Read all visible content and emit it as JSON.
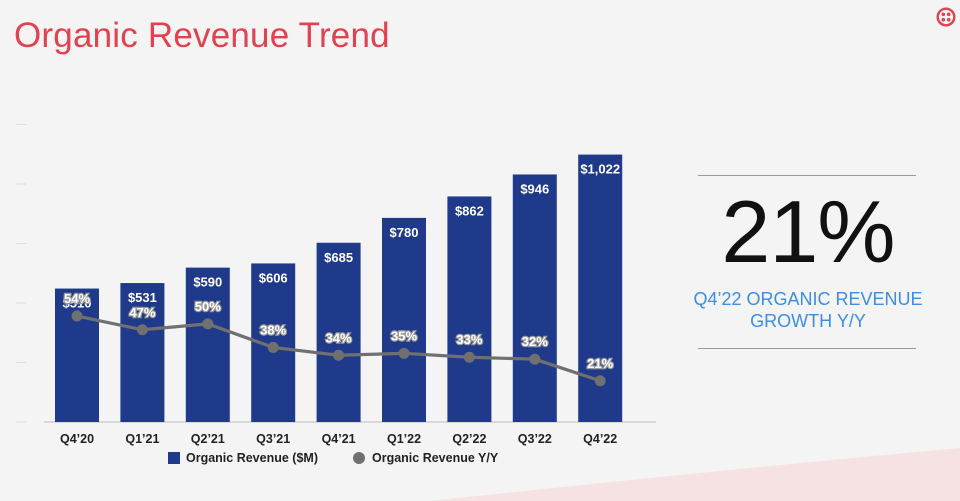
{
  "header": {
    "title": "Organic Revenue Trend"
  },
  "logo": {
    "icon": "twilio-logo-icon",
    "color": "#e0424f"
  },
  "kpi": {
    "value": "21%",
    "caption_line1": "Q4’22 ORGANIC REVENUE",
    "caption_line2": "GROWTH Y/Y"
  },
  "chart_data": {
    "type": "bar",
    "categories": [
      "Q4’20",
      "Q1’21",
      "Q2’21",
      "Q3’21",
      "Q4’21",
      "Q1’22",
      "Q2’22",
      "Q3’22",
      "Q4’22"
    ],
    "series": [
      {
        "name": "Organic Revenue ($M)",
        "type": "bar",
        "values": [
          510,
          531,
          590,
          606,
          685,
          780,
          862,
          946,
          1022
        ],
        "labels": [
          "$510",
          "$531",
          "$590",
          "$606",
          "$685",
          "$780",
          "$862",
          "$946",
          "$1,022"
        ],
        "color": "#1f3a8a"
      },
      {
        "name": "Organic Revenue Y/Y",
        "type": "line",
        "values": [
          54,
          47,
          50,
          38,
          34,
          35,
          33,
          32,
          21
        ],
        "labels": [
          "54%",
          "47%",
          "50%",
          "38%",
          "34%",
          "35%",
          "33%",
          "32%",
          "21%"
        ],
        "color": "#707070"
      }
    ],
    "ylim": [
      0,
      1200
    ],
    "y2lim": [
      0,
      160
    ],
    "legend": "bottom",
    "grid": false
  }
}
